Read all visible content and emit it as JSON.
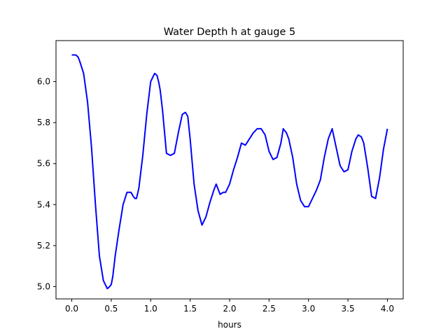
{
  "chart_data": {
    "type": "line",
    "title": "Water Depth h at gauge 5",
    "xlabel": "hours",
    "ylabel": "",
    "xlim": [
      -0.2,
      4.2
    ],
    "ylim": [
      4.94,
      6.2
    ],
    "xticks": [
      0.0,
      0.5,
      1.0,
      1.5,
      2.0,
      2.5,
      3.0,
      3.5,
      4.0
    ],
    "xtick_labels": [
      "0.0",
      "0.5",
      "1.0",
      "1.5",
      "2.0",
      "2.5",
      "3.0",
      "3.5",
      "4.0"
    ],
    "yticks": [
      5.0,
      5.2,
      5.4,
      5.6,
      5.8,
      6.0
    ],
    "ytick_labels": [
      "5.0",
      "5.2",
      "5.4",
      "5.6",
      "5.8",
      "6.0"
    ],
    "grid": false,
    "legend": "none",
    "series": [
      {
        "color": "#0000ff",
        "x": [
          0.0,
          0.05,
          0.08,
          0.1,
          0.15,
          0.2,
          0.25,
          0.3,
          0.35,
          0.4,
          0.45,
          0.48,
          0.5,
          0.52,
          0.55,
          0.6,
          0.65,
          0.7,
          0.72,
          0.75,
          0.78,
          0.8,
          0.82,
          0.85,
          0.9,
          0.95,
          1.0,
          1.05,
          1.08,
          1.1,
          1.12,
          1.15,
          1.2,
          1.25,
          1.3,
          1.35,
          1.4,
          1.44,
          1.47,
          1.5,
          1.55,
          1.6,
          1.65,
          1.7,
          1.75,
          1.8,
          1.83,
          1.85,
          1.88,
          1.92,
          1.95,
          2.0,
          2.05,
          2.1,
          2.15,
          2.2,
          2.25,
          2.3,
          2.35,
          2.4,
          2.45,
          2.5,
          2.55,
          2.6,
          2.65,
          2.68,
          2.72,
          2.75,
          2.8,
          2.85,
          2.9,
          2.95,
          3.0,
          3.05,
          3.1,
          3.15,
          3.2,
          3.25,
          3.3,
          3.35,
          3.4,
          3.45,
          3.5,
          3.55,
          3.6,
          3.63,
          3.67,
          3.7,
          3.75,
          3.8,
          3.85,
          3.9,
          3.95,
          4.0
        ],
        "y": [
          6.13,
          6.13,
          6.12,
          6.1,
          6.04,
          5.9,
          5.68,
          5.4,
          5.15,
          5.03,
          4.99,
          5.0,
          5.01,
          5.05,
          5.15,
          5.28,
          5.4,
          5.46,
          5.46,
          5.46,
          5.44,
          5.43,
          5.43,
          5.48,
          5.64,
          5.84,
          6.0,
          6.04,
          6.03,
          6.0,
          5.96,
          5.86,
          5.65,
          5.64,
          5.65,
          5.75,
          5.84,
          5.85,
          5.83,
          5.72,
          5.5,
          5.37,
          5.3,
          5.34,
          5.41,
          5.47,
          5.5,
          5.48,
          5.45,
          5.46,
          5.46,
          5.5,
          5.57,
          5.63,
          5.7,
          5.69,
          5.72,
          5.75,
          5.77,
          5.77,
          5.74,
          5.66,
          5.62,
          5.63,
          5.7,
          5.77,
          5.75,
          5.72,
          5.63,
          5.5,
          5.42,
          5.39,
          5.39,
          5.43,
          5.47,
          5.52,
          5.63,
          5.72,
          5.77,
          5.68,
          5.59,
          5.56,
          5.57,
          5.66,
          5.72,
          5.74,
          5.73,
          5.7,
          5.58,
          5.44,
          5.43,
          5.53,
          5.67,
          5.77
        ]
      }
    ]
  }
}
